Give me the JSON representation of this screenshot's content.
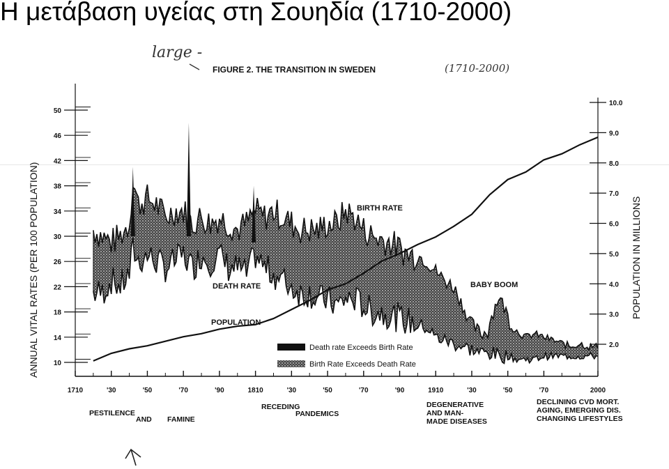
{
  "slide": {
    "title": "Η μετάβαση υγείας στη Σουηδία (1710-2000)"
  },
  "chart_data": {
    "type": "line",
    "title": "FIGURE 2. THE TRANSITION IN SWEDEN",
    "left_axis_title": "ANNUAL VITAL RATES (PER 100 POPULATION)",
    "right_axis_title": "POPULATION IN MILLIONS",
    "left_ticks": [
      "10",
      "14",
      "18",
      "22",
      "26",
      "30",
      "34",
      "38",
      "42",
      "46",
      "50"
    ],
    "right_ticks": [
      "2.0",
      "3.0",
      "4.0",
      "5.0",
      "6.0",
      "7.0",
      "8.0",
      "9.0",
      "10.0"
    ],
    "x_ticks": [
      "1710",
      "'30",
      "'50",
      "'70",
      "'90",
      "1810",
      "'30",
      "'50",
      "'70",
      "'90",
      "1910",
      "'30",
      "'50",
      "'70",
      "2000"
    ],
    "xlim": [
      1710,
      2000
    ],
    "ylim_left": [
      8,
      52
    ],
    "ylim_right": [
      1.5,
      10.0
    ],
    "series": [
      {
        "name": "BIRTH RATE",
        "x": [
          1720,
          1725,
          1730,
          1735,
          1740,
          1742,
          1745,
          1750,
          1755,
          1760,
          1765,
          1770,
          1775,
          1780,
          1785,
          1790,
          1795,
          1800,
          1805,
          1810,
          1815,
          1820,
          1825,
          1830,
          1835,
          1840,
          1845,
          1850,
          1855,
          1860,
          1865,
          1870,
          1875,
          1880,
          1885,
          1890,
          1895,
          1900,
          1905,
          1910,
          1915,
          1920,
          1925,
          1930,
          1935,
          1940,
          1945,
          1950,
          1955,
          1960,
          1965,
          1970,
          1975,
          1980,
          1985,
          1990,
          1995,
          2000
        ],
        "y": [
          31,
          30,
          29,
          30,
          32,
          39,
          35,
          36,
          35,
          33,
          34,
          34,
          32,
          33,
          32,
          33,
          32,
          31,
          32,
          34,
          33,
          34,
          33,
          32,
          31,
          31,
          31,
          32,
          32,
          34,
          33,
          31,
          30,
          29.5,
          29,
          28,
          27,
          27,
          26,
          24.5,
          23,
          22,
          19,
          16,
          14.5,
          15,
          19,
          16,
          15,
          14,
          14.5,
          14,
          13.5,
          13,
          12.5,
          13,
          12.5,
          12.5
        ]
      },
      {
        "name": "DEATH RATE",
        "x": [
          1720,
          1725,
          1730,
          1735,
          1740,
          1742,
          1745,
          1750,
          1755,
          1760,
          1765,
          1770,
          1775,
          1780,
          1785,
          1790,
          1795,
          1800,
          1805,
          1810,
          1815,
          1820,
          1825,
          1830,
          1835,
          1840,
          1845,
          1850,
          1855,
          1860,
          1865,
          1870,
          1875,
          1880,
          1885,
          1890,
          1895,
          1900,
          1905,
          1910,
          1915,
          1920,
          1925,
          1930,
          1935,
          1940,
          1945,
          1950,
          1955,
          1960,
          1965,
          1970,
          1975,
          1980,
          1985,
          1990,
          1995,
          2000
        ],
        "y": [
          21,
          21,
          23,
          22,
          24,
          28,
          26,
          27,
          26,
          25,
          26,
          27,
          25,
          27,
          26,
          27,
          25,
          25,
          24,
          27,
          25,
          24,
          23,
          22,
          21,
          21,
          20,
          20,
          19,
          20,
          20,
          19,
          18,
          18,
          17.5,
          17,
          16.5,
          16,
          15.5,
          14,
          13.5,
          13,
          12.5,
          12,
          11.5,
          11.5,
          11,
          11,
          10.5,
          10.5,
          10.5,
          11,
          11,
          11,
          11,
          11,
          11,
          11
        ]
      },
      {
        "name": "POPULATION",
        "x": [
          1720,
          1730,
          1740,
          1750,
          1760,
          1770,
          1780,
          1790,
          1800,
          1810,
          1820,
          1830,
          1840,
          1850,
          1860,
          1870,
          1880,
          1890,
          1900,
          1910,
          1920,
          1930,
          1940,
          1950,
          1960,
          1970,
          1980,
          1990,
          2000
        ],
        "y": [
          1.45,
          1.7,
          1.85,
          1.95,
          2.1,
          2.25,
          2.35,
          2.5,
          2.6,
          2.65,
          2.85,
          3.15,
          3.45,
          3.8,
          4.0,
          4.35,
          4.75,
          5.0,
          5.3,
          5.55,
          5.9,
          6.3,
          6.95,
          7.45,
          7.7,
          8.1,
          8.3,
          8.6,
          8.85
        ]
      }
    ],
    "annotations": {
      "birth_rate": "BIRTH RATE",
      "death_rate": "DEATH RATE",
      "population": "POPULATION",
      "baby_boom": "BABY BOOM"
    },
    "legend": [
      {
        "label": "Death rate Exceeds Birth Rate",
        "style": "solid"
      },
      {
        "label": "Birth Rate Exceeds Death Rate",
        "style": "stipple"
      }
    ],
    "eras": {
      "e1a": "PESTILENCE",
      "e1b": "AND",
      "e1c": "FAMINE",
      "e2a": "RECEDING",
      "e2b": "PANDEMICS",
      "e3a": "DEGENERATIVE",
      "e3b": "AND MAN-",
      "e3c": "MADE DISEASES",
      "e4a": "DECLINING CVD MORT.",
      "e4b": "AGING, EMERGING DIS.",
      "e4c": "CHANGING LIFESTYLES"
    },
    "colors": {
      "ink": "#111111",
      "stipple": "#7a7a7a"
    }
  },
  "handwriting": {
    "top": "large -",
    "bracket": "(1710-2000)"
  }
}
